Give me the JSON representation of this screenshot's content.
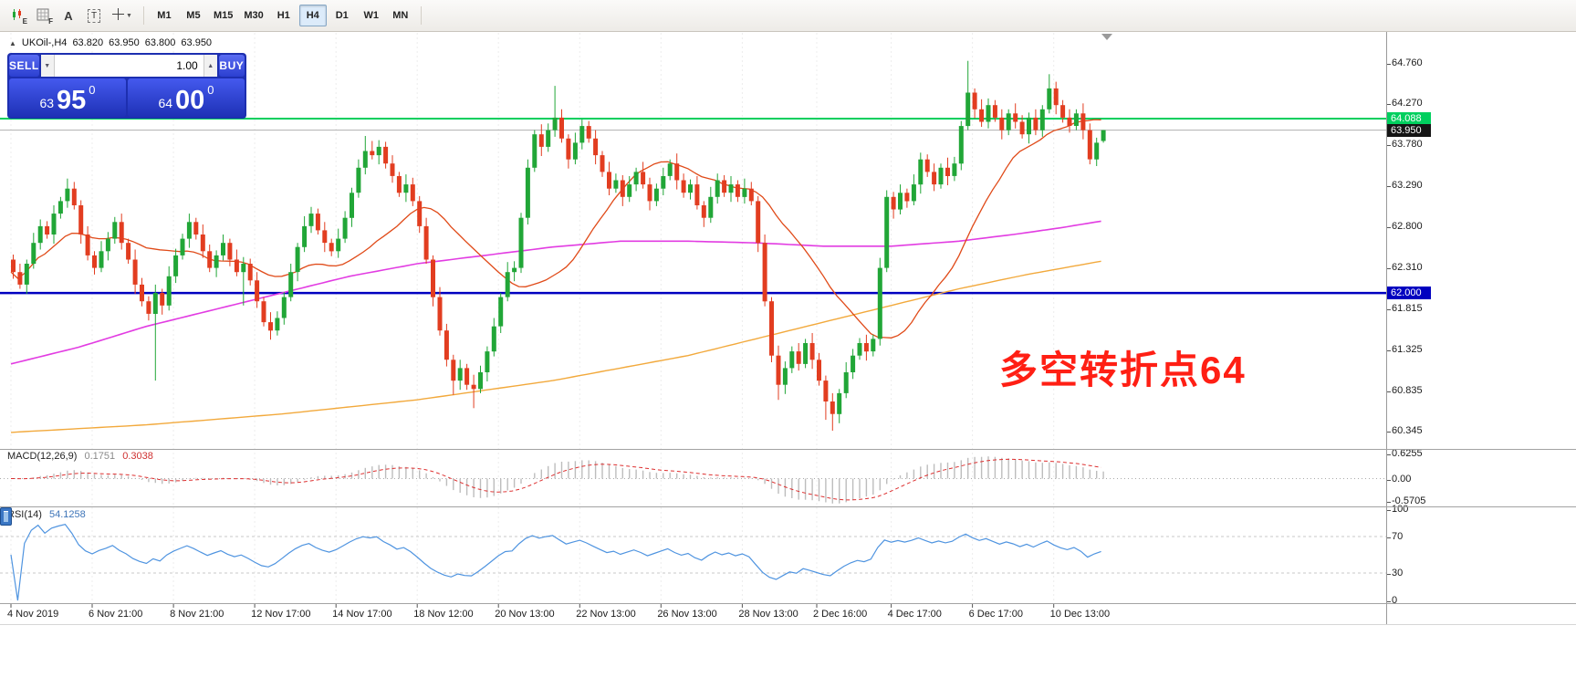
{
  "toolbar": {
    "tools": {
      "candle_sub": "E",
      "grid_sub": "F",
      "text_label": "A",
      "textbox_label": "T"
    },
    "timeframes": {
      "items": [
        "M1",
        "M5",
        "M15",
        "M30",
        "H1",
        "H4",
        "D1",
        "W1",
        "MN"
      ],
      "active": "H4"
    }
  },
  "symbol_header": {
    "collapse_arrow": "▲",
    "symbol_tf": "UKOil-,H4",
    "open": "63.820",
    "high": "63.950",
    "low": "63.800",
    "close": "63.950"
  },
  "trade_panel": {
    "sell_label": "SELL",
    "buy_label": "BUY",
    "volume": "1.00",
    "bid": {
      "small": "63",
      "big": "95",
      "sup": "0"
    },
    "ask": {
      "small": "64",
      "big": "00",
      "sup": "0"
    }
  },
  "colors": {
    "up": "#21a637",
    "down": "#e23d20",
    "ma_fast": "#e04a18",
    "ma_magenta": "#e23ce2",
    "ma_orange": "#f2a93c",
    "macd_hist": "#bdbdbd",
    "macd_signal": "#dd2f2f",
    "rsi_line": "#4f94e0",
    "grid": "#ececec",
    "bid_line": "#b0b0b0",
    "annotation": "#ff1f14"
  },
  "chart_data": {
    "type": "candlestick",
    "symbol": "UKOil-",
    "timeframe": "H4",
    "y_axis": {
      "labels": [
        "64.760",
        "64.270",
        "63.780",
        "63.290",
        "62.800",
        "62.310",
        "61.815",
        "61.325",
        "60.835",
        "60.345"
      ]
    },
    "x_axis": {
      "labels": [
        {
          "i": 0,
          "t": "4 Nov 2019"
        },
        {
          "i": 12,
          "t": "6 Nov 21:00"
        },
        {
          "i": 24,
          "t": "8 Nov 21:00"
        },
        {
          "i": 36,
          "t": "12 Nov 17:00"
        },
        {
          "i": 48,
          "t": "14 Nov 17:00"
        },
        {
          "i": 60,
          "t": "18 Nov 12:00"
        },
        {
          "i": 72,
          "t": "20 Nov 13:00"
        },
        {
          "i": 84,
          "t": "22 Nov 13:00"
        },
        {
          "i": 96,
          "t": "26 Nov 13:00"
        },
        {
          "i": 108,
          "t": "28 Nov 13:00"
        },
        {
          "i": 119,
          "t": "2 Dec 16:00"
        },
        {
          "i": 130,
          "t": "4 Dec 17:00"
        },
        {
          "i": 142,
          "t": "6 Dec 17:00"
        },
        {
          "i": 154,
          "t": "10 Dec 13:00"
        }
      ]
    },
    "candles": [
      [
        62.4,
        62.46,
        62.17,
        62.25
      ],
      [
        62.25,
        62.35,
        62.05,
        62.1
      ],
      [
        62.1,
        62.4,
        61.99,
        62.35
      ],
      [
        62.35,
        62.72,
        62.29,
        62.6
      ],
      [
        62.6,
        62.88,
        62.52,
        62.8
      ],
      [
        62.8,
        62.86,
        62.65,
        62.7
      ],
      [
        62.7,
        63.05,
        62.59,
        62.95
      ],
      [
        62.95,
        63.15,
        62.89,
        63.1
      ],
      [
        63.1,
        63.37,
        63.02,
        63.25
      ],
      [
        63.25,
        63.33,
        63.0,
        63.05
      ],
      [
        63.05,
        63.11,
        62.59,
        62.7
      ],
      [
        62.7,
        62.8,
        62.39,
        62.45
      ],
      [
        62.45,
        62.5,
        62.22,
        62.3
      ],
      [
        62.3,
        62.62,
        62.25,
        62.5
      ],
      [
        62.5,
        62.73,
        62.39,
        62.65
      ],
      [
        62.65,
        62.91,
        62.59,
        62.85
      ],
      [
        62.85,
        62.95,
        62.52,
        62.6
      ],
      [
        62.6,
        62.65,
        62.35,
        62.4
      ],
      [
        62.4,
        62.52,
        61.99,
        62.1
      ],
      [
        62.1,
        62.18,
        61.84,
        61.9
      ],
      [
        61.9,
        61.96,
        61.67,
        61.75
      ],
      [
        61.75,
        62.1,
        60.95,
        62.0
      ],
      [
        62.0,
        62.05,
        61.74,
        61.85
      ],
      [
        61.85,
        62.32,
        61.79,
        62.2
      ],
      [
        62.2,
        62.53,
        62.12,
        62.45
      ],
      [
        62.45,
        62.71,
        62.4,
        62.65
      ],
      [
        62.65,
        62.95,
        62.54,
        62.85
      ],
      [
        62.85,
        62.9,
        62.64,
        62.7
      ],
      [
        62.7,
        62.82,
        62.42,
        62.5
      ],
      [
        62.5,
        62.58,
        62.25,
        62.3
      ],
      [
        62.3,
        62.51,
        62.19,
        62.45
      ],
      [
        62.45,
        62.7,
        62.39,
        62.6
      ],
      [
        62.6,
        62.65,
        62.32,
        62.4
      ],
      [
        62.4,
        62.52,
        62.2,
        62.25
      ],
      [
        62.25,
        62.43,
        61.85,
        62.35
      ],
      [
        62.35,
        62.41,
        62.09,
        62.15
      ],
      [
        62.15,
        62.25,
        61.82,
        61.9
      ],
      [
        61.9,
        61.95,
        61.6,
        61.65
      ],
      [
        61.65,
        61.77,
        61.44,
        61.55
      ],
      [
        61.55,
        61.78,
        61.49,
        61.7
      ],
      [
        61.7,
        62.01,
        61.62,
        61.95
      ],
      [
        61.95,
        62.35,
        61.9,
        62.25
      ],
      [
        62.25,
        62.6,
        62.14,
        62.55
      ],
      [
        62.55,
        62.92,
        62.49,
        62.8
      ],
      [
        62.8,
        63.03,
        62.72,
        62.95
      ],
      [
        62.95,
        63.01,
        62.7,
        62.75
      ],
      [
        62.75,
        62.85,
        62.49,
        62.6
      ],
      [
        62.6,
        62.65,
        62.44,
        62.5
      ],
      [
        62.5,
        62.77,
        62.42,
        62.65
      ],
      [
        62.65,
        62.98,
        62.6,
        62.9
      ],
      [
        62.9,
        63.26,
        62.79,
        63.2
      ],
      [
        63.2,
        63.6,
        63.14,
        63.5
      ],
      [
        63.5,
        63.88,
        63.42,
        63.7
      ],
      [
        63.7,
        63.82,
        63.6,
        63.65
      ],
      [
        63.65,
        63.83,
        63.54,
        63.75
      ],
      [
        63.75,
        63.81,
        63.49,
        63.55
      ],
      [
        63.55,
        63.65,
        63.32,
        63.4
      ],
      [
        63.4,
        63.45,
        63.15,
        63.2
      ],
      [
        63.2,
        63.42,
        63.09,
        63.3
      ],
      [
        63.3,
        63.38,
        63.04,
        63.1
      ],
      [
        63.1,
        63.16,
        62.72,
        62.8
      ],
      [
        62.8,
        62.9,
        62.35,
        62.4
      ],
      [
        62.4,
        62.45,
        61.84,
        61.95
      ],
      [
        61.95,
        62.07,
        61.49,
        61.55
      ],
      [
        61.55,
        61.63,
        61.12,
        61.2
      ],
      [
        61.2,
        61.26,
        60.78,
        60.95
      ],
      [
        60.95,
        61.2,
        60.84,
        61.1
      ],
      [
        61.1,
        61.15,
        60.84,
        60.9
      ],
      [
        60.9,
        61.02,
        60.62,
        60.85
      ],
      [
        60.85,
        61.13,
        60.8,
        61.05
      ],
      [
        61.05,
        61.36,
        60.94,
        61.3
      ],
      [
        61.3,
        61.7,
        61.24,
        61.6
      ],
      [
        61.6,
        62.0,
        61.52,
        61.95
      ],
      [
        61.95,
        62.37,
        61.9,
        62.25
      ],
      [
        62.25,
        62.38,
        62.14,
        62.3
      ],
      [
        62.3,
        62.96,
        62.24,
        62.9
      ],
      [
        62.9,
        63.6,
        62.82,
        63.5
      ],
      [
        63.5,
        63.95,
        63.45,
        63.9
      ],
      [
        63.9,
        64.02,
        63.64,
        63.75
      ],
      [
        63.75,
        64.03,
        63.69,
        63.95
      ],
      [
        63.95,
        64.48,
        63.87,
        64.1
      ],
      [
        64.1,
        64.2,
        63.8,
        63.85
      ],
      [
        63.85,
        63.9,
        63.49,
        63.6
      ],
      [
        63.6,
        63.92,
        63.54,
        63.8
      ],
      [
        63.8,
        64.08,
        63.72,
        64.0
      ],
      [
        64.0,
        64.06,
        63.8,
        63.85
      ],
      [
        63.85,
        63.95,
        63.54,
        63.65
      ],
      [
        63.65,
        63.7,
        63.39,
        63.45
      ],
      [
        63.45,
        63.57,
        63.17,
        63.25
      ],
      [
        63.25,
        63.43,
        63.2,
        63.35
      ],
      [
        63.35,
        63.41,
        63.04,
        63.15
      ],
      [
        63.15,
        63.4,
        63.09,
        63.3
      ],
      [
        63.3,
        63.5,
        63.22,
        63.45
      ],
      [
        63.45,
        63.57,
        63.25,
        63.3
      ],
      [
        63.3,
        63.38,
        62.99,
        63.1
      ],
      [
        63.1,
        63.31,
        63.04,
        63.25
      ],
      [
        63.25,
        63.5,
        63.17,
        63.4
      ],
      [
        63.4,
        63.6,
        63.35,
        63.55
      ],
      [
        63.55,
        63.67,
        63.24,
        63.35
      ],
      [
        63.35,
        63.43,
        63.14,
        63.2
      ],
      [
        63.2,
        63.36,
        63.12,
        63.3
      ],
      [
        63.3,
        63.4,
        63.0,
        63.05
      ],
      [
        63.05,
        63.1,
        62.79,
        62.9
      ],
      [
        62.9,
        63.27,
        62.84,
        63.15
      ],
      [
        63.15,
        63.43,
        63.07,
        63.35
      ],
      [
        63.35,
        63.41,
        63.15,
        63.2
      ],
      [
        63.2,
        63.4,
        63.09,
        63.3
      ],
      [
        63.3,
        63.35,
        63.09,
        63.15
      ],
      [
        63.15,
        63.37,
        63.07,
        63.25
      ],
      [
        63.25,
        63.33,
        63.05,
        63.1
      ],
      [
        63.1,
        63.16,
        62.49,
        62.6
      ],
      [
        62.6,
        62.7,
        61.84,
        61.9
      ],
      [
        61.9,
        61.95,
        61.17,
        61.25
      ],
      [
        61.25,
        61.37,
        60.72,
        60.9
      ],
      [
        60.9,
        61.18,
        60.79,
        61.1
      ],
      [
        61.1,
        61.36,
        61.04,
        61.3
      ],
      [
        61.3,
        61.4,
        61.07,
        61.15
      ],
      [
        61.15,
        61.45,
        61.1,
        61.4
      ],
      [
        61.4,
        61.52,
        61.09,
        61.2
      ],
      [
        61.2,
        61.28,
        60.89,
        60.95
      ],
      [
        60.95,
        61.01,
        60.48,
        60.7
      ],
      [
        60.7,
        60.8,
        60.35,
        60.55
      ],
      [
        60.55,
        60.85,
        60.44,
        60.8
      ],
      [
        60.8,
        61.17,
        60.74,
        61.05
      ],
      [
        61.05,
        61.33,
        60.97,
        61.25
      ],
      [
        61.25,
        61.46,
        61.2,
        61.4
      ],
      [
        61.4,
        61.5,
        61.19,
        61.3
      ],
      [
        61.3,
        61.5,
        61.24,
        61.45
      ],
      [
        61.45,
        62.42,
        61.37,
        62.3
      ],
      [
        62.3,
        63.23,
        62.25,
        63.15
      ],
      [
        63.15,
        63.21,
        62.89,
        63.0
      ],
      [
        63.0,
        63.3,
        62.94,
        63.2
      ],
      [
        63.2,
        63.25,
        63.02,
        63.1
      ],
      [
        63.1,
        63.42,
        63.05,
        63.3
      ],
      [
        63.3,
        63.68,
        63.19,
        63.6
      ],
      [
        63.6,
        63.66,
        63.39,
        63.45
      ],
      [
        63.45,
        63.55,
        63.22,
        63.3
      ],
      [
        63.3,
        63.55,
        63.25,
        63.5
      ],
      [
        63.5,
        63.62,
        63.29,
        63.4
      ],
      [
        63.4,
        63.63,
        63.34,
        63.55
      ],
      [
        63.55,
        64.06,
        63.47,
        64.0
      ],
      [
        64.0,
        64.78,
        63.95,
        64.4
      ],
      [
        64.4,
        64.45,
        64.09,
        64.2
      ],
      [
        64.2,
        64.32,
        63.99,
        64.05
      ],
      [
        64.05,
        64.33,
        63.97,
        64.25
      ],
      [
        64.25,
        64.31,
        64.05,
        64.1
      ],
      [
        64.1,
        64.2,
        63.84,
        63.95
      ],
      [
        63.95,
        64.2,
        63.89,
        64.15
      ],
      [
        64.15,
        64.27,
        63.97,
        64.05
      ],
      [
        64.05,
        64.13,
        63.85,
        63.9
      ],
      [
        63.9,
        64.16,
        63.79,
        64.1
      ],
      [
        64.1,
        64.2,
        63.89,
        63.95
      ],
      [
        63.95,
        64.25,
        63.87,
        64.2
      ],
      [
        64.2,
        64.62,
        64.15,
        64.45
      ],
      [
        64.45,
        64.53,
        64.14,
        64.25
      ],
      [
        64.25,
        64.31,
        64.04,
        64.1
      ],
      [
        64.1,
        64.2,
        63.92,
        64.0
      ],
      [
        64.0,
        64.2,
        63.95,
        64.15
      ],
      [
        64.15,
        64.27,
        63.84,
        63.95
      ],
      [
        63.95,
        64.03,
        63.54,
        63.6
      ],
      [
        63.6,
        63.86,
        63.52,
        63.8
      ],
      [
        63.82,
        63.95,
        63.8,
        63.95
      ]
    ],
    "overlays": {
      "hlines": [
        {
          "price": 64.088,
          "label": "64.088",
          "color": "#00cf5e",
          "width": 2
        },
        {
          "price": 62.0,
          "label": "62.000",
          "color": "#0000c0",
          "width": 2.5
        }
      ],
      "bid": {
        "price": 63.95,
        "label": "63.950",
        "badge": "#151515"
      },
      "ma_fast_period": 21,
      "ma_magenta": [
        [
          0,
          61.15
        ],
        [
          10,
          61.35
        ],
        [
          20,
          61.6
        ],
        [
          30,
          61.8
        ],
        [
          40,
          62.0
        ],
        [
          50,
          62.2
        ],
        [
          60,
          62.35
        ],
        [
          70,
          62.45
        ],
        [
          80,
          62.55
        ],
        [
          90,
          62.62
        ],
        [
          100,
          62.62
        ],
        [
          110,
          62.6
        ],
        [
          120,
          62.56
        ],
        [
          130,
          62.56
        ],
        [
          140,
          62.62
        ],
        [
          148,
          62.7
        ],
        [
          155,
          62.78
        ],
        [
          161,
          62.86
        ]
      ],
      "ma_orange": [
        [
          0,
          60.33
        ],
        [
          20,
          60.42
        ],
        [
          40,
          60.55
        ],
        [
          60,
          60.72
        ],
        [
          80,
          60.95
        ],
        [
          100,
          61.25
        ],
        [
          110,
          61.45
        ],
        [
          120,
          61.65
        ],
        [
          130,
          61.85
        ],
        [
          140,
          62.05
        ],
        [
          150,
          62.22
        ],
        [
          161,
          62.38
        ]
      ],
      "annotation": {
        "text": "多空转折点64"
      }
    },
    "macd": {
      "title": "MACD(12,26,9)",
      "values": [
        "0.1751",
        "0.3038"
      ],
      "params": {
        "fast": 12,
        "slow": 26,
        "signal": 9
      },
      "y_labels": [
        "0.6255",
        "0.00",
        "-0.5705"
      ]
    },
    "rsi": {
      "title": "RSI(14)",
      "value": "54.1258",
      "period": 14,
      "y_labels": [
        "100",
        "70",
        "30",
        "0"
      ],
      "levels": [
        70,
        30
      ]
    }
  }
}
